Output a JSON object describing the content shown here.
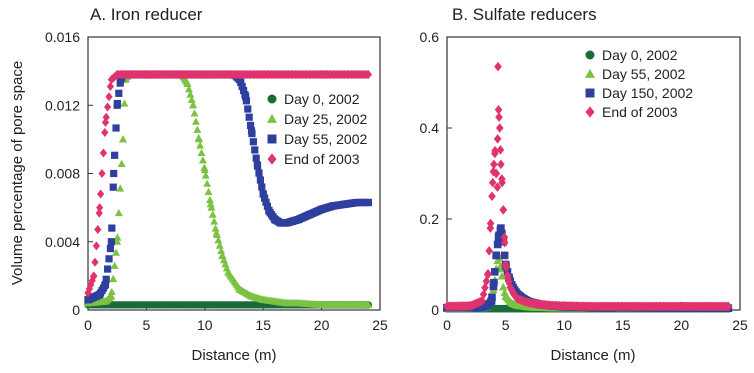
{
  "chart_data": [
    {
      "type": "scatter",
      "title": "A. Iron reducer",
      "xlabel": "Distance (m)",
      "ylabel": "Volume percentage of pore space",
      "xlim": [
        0,
        25
      ],
      "ylim": [
        0,
        0.016
      ],
      "xticks": [
        "0",
        "5",
        "10",
        "15",
        "20",
        "25"
      ],
      "yticks": [
        "0",
        "0.004",
        "0.008",
        "0.012",
        "0.016"
      ],
      "grid": false,
      "legend": "right",
      "series": [
        {
          "name": "Day 0, 2002",
          "marker": "circle",
          "color": "#1a6b3a",
          "x": [
            0,
            24
          ],
          "y": [
            0.0003,
            0.0003
          ]
        },
        {
          "name": "Day 25, 2002",
          "marker": "triangle",
          "color": "#7cc242",
          "x": [
            0,
            1.5,
            2.0,
            2.5,
            3.0,
            3.2,
            3.5,
            8.0,
            8.5,
            9.0,
            9.5,
            10.0,
            10.5,
            11.0,
            11.5,
            12.0,
            13.0,
            14.0,
            15.0,
            16.0,
            17.0,
            18.0,
            20.0,
            22.0,
            24.0
          ],
          "y": [
            0.0004,
            0.0005,
            0.0008,
            0.004,
            0.01,
            0.0135,
            0.0138,
            0.0138,
            0.0133,
            0.012,
            0.01,
            0.0082,
            0.0062,
            0.0045,
            0.0032,
            0.0022,
            0.0012,
            0.0008,
            0.0006,
            0.0005,
            0.0004,
            0.0004,
            0.0003,
            0.0003,
            0.0003
          ]
        },
        {
          "name": "Day 55, 2002",
          "marker": "square",
          "color": "#2e3f9e",
          "x": [
            0,
            1.0,
            1.5,
            2.0,
            2.2,
            2.5,
            2.8,
            3.0,
            12.5,
            13.0,
            13.5,
            14.0,
            14.5,
            15.0,
            15.5,
            16.0,
            16.5,
            17.0,
            17.5,
            18.0,
            19.0,
            20.0,
            21.0,
            22.0,
            23.0,
            24.0
          ],
          "y": [
            0.0006,
            0.0009,
            0.0015,
            0.004,
            0.008,
            0.012,
            0.0135,
            0.0138,
            0.0138,
            0.0135,
            0.0125,
            0.0105,
            0.0085,
            0.0068,
            0.0058,
            0.0053,
            0.0051,
            0.0051,
            0.0052,
            0.0053,
            0.0056,
            0.0059,
            0.0061,
            0.0062,
            0.0063,
            0.0063
          ]
        },
        {
          "name": "End of 2003",
          "marker": "diamond",
          "color": "#e0336e",
          "x": [
            0,
            0.5,
            1.0,
            1.5,
            2.0,
            2.5,
            5,
            10,
            15,
            20,
            24
          ],
          "y": [
            0.001,
            0.002,
            0.006,
            0.011,
            0.0135,
            0.0138,
            0.0138,
            0.0138,
            0.0138,
            0.0138,
            0.0138
          ]
        }
      ]
    },
    {
      "type": "scatter",
      "title": "B. Sulfate reducers",
      "xlabel": "Distance (m)",
      "ylabel": "",
      "xlim": [
        0,
        25
      ],
      "ylim": [
        0,
        0.6
      ],
      "xticks": [
        "0",
        "5",
        "10",
        "15",
        "20",
        "25"
      ],
      "yticks": [
        "0",
        "0.2",
        "0.4",
        "0.6"
      ],
      "grid": false,
      "legend": "top-right",
      "series": [
        {
          "name": "Day 0, 2002",
          "marker": "circle",
          "color": "#1a6b3a",
          "x": [
            0,
            24
          ],
          "y": [
            0.003,
            0.003
          ]
        },
        {
          "name": "Day 55, 2002",
          "marker": "triangle",
          "color": "#7cc242",
          "x": [
            0,
            3.0,
            3.5,
            3.8,
            4.0,
            4.2,
            4.4,
            4.6,
            4.8,
            5.0,
            5.5,
            6.0,
            7.0,
            8.0,
            10.0,
            24.0
          ],
          "y": [
            0.003,
            0.004,
            0.008,
            0.02,
            0.05,
            0.09,
            0.12,
            0.09,
            0.05,
            0.03,
            0.015,
            0.01,
            0.006,
            0.005,
            0.004,
            0.003
          ]
        },
        {
          "name": "Day 150, 2002",
          "marker": "square",
          "color": "#2e3f9e",
          "x": [
            0,
            3.0,
            3.5,
            3.8,
            4.0,
            4.2,
            4.4,
            4.6,
            4.8,
            5.0,
            5.3,
            5.6,
            6.0,
            6.5,
            7.0,
            8.0,
            9.0,
            10.0,
            12.0,
            15.0,
            24.0
          ],
          "y": [
            0.005,
            0.006,
            0.01,
            0.02,
            0.06,
            0.12,
            0.16,
            0.18,
            0.15,
            0.1,
            0.07,
            0.05,
            0.035,
            0.025,
            0.018,
            0.012,
            0.009,
            0.007,
            0.006,
            0.005,
            0.004
          ]
        },
        {
          "name": "End of 2003",
          "marker": "diamond",
          "color": "#e0336e",
          "x": [
            0,
            2.0,
            3.0,
            3.5,
            3.7,
            3.9,
            4.0,
            4.1,
            4.2,
            4.3,
            4.35,
            4.4,
            4.5,
            4.6,
            4.7,
            4.8,
            4.9,
            5.0,
            5.2,
            5.4,
            5.7,
            6.0,
            6.5,
            7.0,
            8.0,
            9.0,
            10.0,
            12.0,
            15.0,
            20.0,
            24.0
          ],
          "y": [
            0.008,
            0.009,
            0.02,
            0.08,
            0.18,
            0.28,
            0.32,
            0.35,
            0.3,
            0.27,
            0.535,
            0.44,
            0.4,
            0.32,
            0.28,
            0.22,
            0.16,
            0.1,
            0.07,
            0.05,
            0.035,
            0.025,
            0.02,
            0.016,
            0.012,
            0.01,
            0.009,
            0.008,
            0.008,
            0.008,
            0.008
          ]
        }
      ]
    }
  ]
}
